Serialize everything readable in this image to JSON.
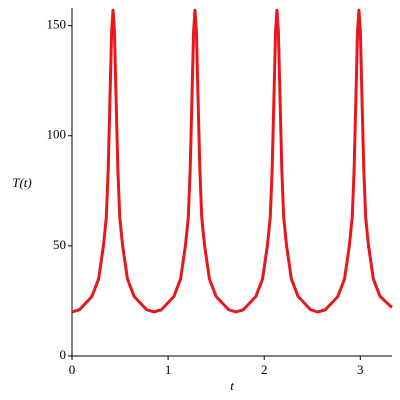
{
  "chart_data": {
    "type": "line",
    "x_label": "t",
    "y_label": "T(t)",
    "color": "#e8171c",
    "x": [
      0,
      0.077,
      0.207,
      0.277,
      0.327,
      0.357,
      0.377,
      0.397,
      0.412,
      0.427,
      0.442,
      0.457,
      0.477,
      0.497,
      0.527,
      0.577,
      0.647,
      0.777,
      0.853,
      0.93,
      1.06,
      1.13,
      1.18,
      1.21,
      1.23,
      1.25,
      1.265,
      1.28,
      1.295,
      1.31,
      1.33,
      1.35,
      1.38,
      1.43,
      1.5,
      1.63,
      1.706,
      1.783,
      1.913,
      1.983,
      2.033,
      2.063,
      2.083,
      2.103,
      2.118,
      2.133,
      2.148,
      2.163,
      2.183,
      2.203,
      2.233,
      2.283,
      2.353,
      2.483,
      2.559,
      2.636,
      2.766,
      2.836,
      2.886,
      2.916,
      2.936,
      2.956,
      2.971,
      2.986,
      3.001,
      3.016,
      3.036,
      3.056,
      3.086,
      3.136,
      3.206,
      3.33
    ],
    "values": [
      20,
      21,
      27,
      35,
      50,
      63,
      85,
      120,
      147,
      157,
      147,
      120,
      85,
      63,
      50,
      35,
      27,
      21,
      20,
      21,
      27,
      35,
      50,
      63,
      85,
      120,
      147,
      157,
      147,
      120,
      85,
      63,
      50,
      35,
      27,
      21,
      20,
      21,
      27,
      35,
      50,
      63,
      85,
      120,
      147,
      157,
      147,
      120,
      85,
      63,
      50,
      35,
      27,
      21,
      20,
      21,
      27,
      35,
      50,
      63,
      85,
      120,
      147,
      157,
      147,
      120,
      85,
      63,
      50,
      35,
      27,
      22
    ],
    "xlim": [
      0,
      3.33
    ],
    "ylim": [
      0,
      158
    ],
    "xticks": [
      0,
      1,
      2,
      3
    ],
    "yticks": [
      0,
      50,
      100,
      150
    ]
  }
}
